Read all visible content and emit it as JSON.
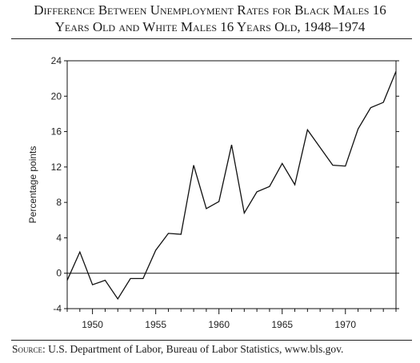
{
  "title_line1": "Difference Between Unemployment Rates for Black Males 16",
  "title_line2": "Years Old and White Males 16 Years Old, 1948–1974",
  "source_label": "Source:",
  "source_text": "U.S. Department of Labor, Bureau of Labor Statistics, www.bls.gov.",
  "chart_data": {
    "type": "line",
    "title": "Difference Between Unemployment Rates for Black Males 16 Years Old and White Males 16 Years Old, 1948–1974",
    "xlabel": "",
    "ylabel": "Percentage points",
    "xlim": [
      1948,
      1974
    ],
    "ylim": [
      -4,
      24
    ],
    "x_ticks": [
      1950,
      1955,
      1960,
      1965,
      1970
    ],
    "y_ticks": [
      -4,
      0,
      4,
      8,
      12,
      16,
      20,
      24
    ],
    "zero_line": true,
    "grid": false,
    "x": [
      1948,
      1949,
      1950,
      1951,
      1952,
      1953,
      1954,
      1955,
      1956,
      1957,
      1958,
      1959,
      1960,
      1961,
      1962,
      1963,
      1964,
      1965,
      1966,
      1967,
      1968,
      1969,
      1970,
      1971,
      1972,
      1973,
      1974
    ],
    "values": [
      -0.8,
      2.4,
      -1.3,
      -0.8,
      -2.9,
      -0.6,
      -0.6,
      2.6,
      4.5,
      4.4,
      12.2,
      7.3,
      8.1,
      14.5,
      6.8,
      9.2,
      9.8,
      12.4,
      10.0,
      16.2,
      14.2,
      12.2,
      12.1,
      16.3,
      18.7,
      19.3,
      22.8
    ],
    "line_color": "#111111"
  }
}
